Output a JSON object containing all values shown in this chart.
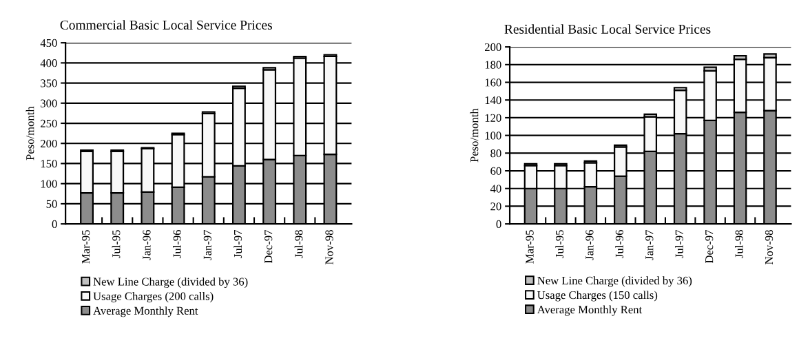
{
  "chart_data": [
    {
      "type": "bar",
      "title": "Commercial Basic Local Service Prices",
      "ylabel": "Peso/month",
      "stacked": true,
      "categories": [
        "Mar-95",
        "Jul-95",
        "Jan-96",
        "Jul-96",
        "Jan-97",
        "Jul-97",
        "Dec-97",
        "Jul-98",
        "Nov-98"
      ],
      "series": [
        {
          "name": "Average Monthly Rent",
          "color": "#8c8c8c",
          "values": [
            77,
            77,
            79,
            91,
            117,
            144,
            160,
            170,
            173
          ]
        },
        {
          "name": "Usage Charges (200 calls)",
          "color": "#f8f8f8",
          "values": [
            103,
            103,
            108,
            131,
            157,
            193,
            223,
            242,
            243
          ]
        },
        {
          "name": "New Line Charge (divided by 36)",
          "color": "#c0c0c0",
          "values": [
            3,
            3,
            2,
            3,
            4,
            5,
            5,
            4,
            4
          ]
        }
      ],
      "ylim": [
        0,
        450
      ],
      "yticks": [
        0,
        50,
        100,
        150,
        200,
        250,
        300,
        350,
        400,
        450
      ],
      "grid": "y",
      "legend": "bottom"
    },
    {
      "type": "bar",
      "title": "Residential Basic Local Service Prices",
      "ylabel": "Peso/month",
      "stacked": true,
      "categories": [
        "Mar-95",
        "Jul-95",
        "Jan-96",
        "Jul-96",
        "Jan-97",
        "Jul-97",
        "Dec-97",
        "Jul-98",
        "Nov-98"
      ],
      "series": [
        {
          "name": "Average Monthly Rent",
          "color": "#8c8c8c",
          "values": [
            40,
            40,
            42,
            54,
            82,
            102,
            117,
            126,
            128
          ]
        },
        {
          "name": "Usage Charges (150 calls)",
          "color": "#f8f8f8",
          "values": [
            26,
            26,
            27,
            33,
            39,
            49,
            56,
            60,
            60
          ]
        },
        {
          "name": "New Line Charge (divided by 36)",
          "color": "#c0c0c0",
          "values": [
            2,
            2,
            2,
            2,
            3,
            3,
            4,
            4,
            4
          ]
        }
      ],
      "ylim": [
        0,
        200
      ],
      "yticks": [
        0,
        20,
        40,
        60,
        80,
        100,
        120,
        140,
        160,
        180,
        200
      ],
      "grid": "y",
      "legend": "bottom"
    }
  ]
}
